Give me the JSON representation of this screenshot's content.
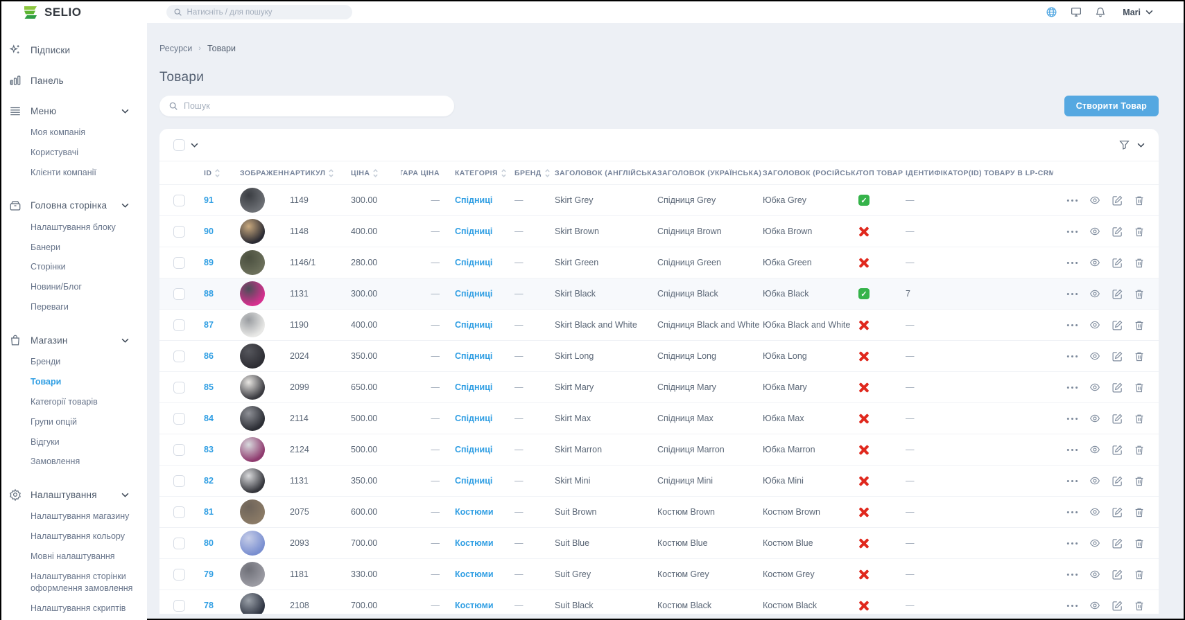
{
  "topbar": {
    "logo_text": "SELIO",
    "search_placeholder": "Натисніть / для пошуку",
    "user_name": "Mari"
  },
  "sidebar": {
    "active_item": "Товари",
    "sections": [
      {
        "label": "Підписки",
        "icon": "sparkles",
        "children": []
      },
      {
        "label": "Панель",
        "icon": "bar-chart",
        "children": []
      },
      {
        "label": "Меню",
        "icon": "menu-lines",
        "expanded": true,
        "children": [
          "Моя компанія",
          "Користувачі",
          "Клієнти компанії"
        ]
      },
      {
        "label": "Головна сторінка",
        "icon": "archive-box",
        "expanded": true,
        "children": [
          "Налаштування блоку",
          "Банери",
          "Сторінки",
          "Новини/Блог",
          "Переваги"
        ]
      },
      {
        "label": "Магазин",
        "icon": "shopping-bag",
        "expanded": true,
        "children": [
          "Бренди",
          "Товари",
          "Категорії товарів",
          "Групи опцій",
          "Відгуки",
          "Замовлення"
        ]
      },
      {
        "label": "Налаштування",
        "icon": "gear",
        "expanded": true,
        "children": [
          "Налаштування магазину",
          "Налаштування кольору",
          "Мовні налаштування",
          "Налаштування сторінки оформлення замовлення",
          "Налаштування скриптів"
        ]
      }
    ]
  },
  "breadcrumb": {
    "items": [
      "Ресурси",
      "Товари"
    ]
  },
  "page": {
    "title": "Товари",
    "search_placeholder": "Пошук",
    "create_button_label": "Створити Товар"
  },
  "colors": {
    "accent_blue": "#2f9ee3",
    "button_blue": "#55a8e1",
    "top_yes_green": "#35b34a",
    "top_no_red": "#e0281d",
    "logo_green": "#5cb531"
  },
  "table": {
    "columns": [
      "ID",
      "ЗОБРАЖЕННЯ",
      "АРТИКУЛ",
      "ЦІНА",
      "СТАРА ЦІНА",
      "КАТЕГОРІЯ",
      "БРЕНД",
      "ЗАГОЛОВОК (АНГЛІЙСЬКА)",
      "ЗАГОЛОВОК (УКРАЇНСЬКА)",
      "ЗАГОЛОВОК (РОСІЙСЬКА)",
      "ТОП ТОВАР",
      "ІДЕНТИФІКАТОР(ID) ТОВАРУ В LP-CRM"
    ],
    "sortable": [
      true,
      false,
      true,
      true,
      false,
      true,
      true,
      false,
      false,
      false,
      false,
      false
    ],
    "empty_value": "—",
    "rows": [
      {
        "id": "91",
        "sku": "1149",
        "price": "300.00",
        "old_price": "—",
        "category": "Спідниці",
        "brand": "—",
        "title_en": "Skirt Grey",
        "title_uk": "Спідниця Grey",
        "title_ru": "Юбка Grey",
        "top": true,
        "lp_crm_id": "—",
        "highlighted": false,
        "thumb_colors": [
          "#6c6f74",
          "#3a3d42"
        ]
      },
      {
        "id": "90",
        "sku": "1148",
        "price": "400.00",
        "old_price": "—",
        "category": "Спідниці",
        "brand": "—",
        "title_en": "Skirt Brown",
        "title_uk": "Спідниця Brown",
        "title_ru": "Юбка Brown",
        "top": false,
        "lp_crm_id": "—",
        "highlighted": false,
        "thumb_colors": [
          "#2b2b33",
          "#c9a97e"
        ]
      },
      {
        "id": "89",
        "sku": "1146/1",
        "price": "280.00",
        "old_price": "—",
        "category": "Спідниці",
        "brand": "—",
        "title_en": "Skirt Green",
        "title_uk": "Спідниця Green",
        "title_ru": "Юбка Green",
        "top": false,
        "lp_crm_id": "—",
        "highlighted": false,
        "thumb_colors": [
          "#6b6f5a",
          "#4a4f3f"
        ]
      },
      {
        "id": "88",
        "sku": "1131",
        "price": "300.00",
        "old_price": "—",
        "category": "Спідниці",
        "brand": "—",
        "title_en": "Skirt Black",
        "title_uk": "Спідниця Black",
        "title_ru": "Юбка Black",
        "top": true,
        "lp_crm_id": "7",
        "highlighted": true,
        "thumb_colors": [
          "#d6308f",
          "#4a4f57"
        ]
      },
      {
        "id": "87",
        "sku": "1190",
        "price": "400.00",
        "old_price": "—",
        "category": "Спідниці",
        "brand": "—",
        "title_en": "Skirt Black and White",
        "title_uk": "Спідниця Black and White",
        "title_ru": "Юбка Black and White",
        "top": false,
        "lp_crm_id": "—",
        "highlighted": false,
        "thumb_colors": [
          "#e8e8e6",
          "#9a9da1"
        ]
      },
      {
        "id": "86",
        "sku": "2024",
        "price": "350.00",
        "old_price": "—",
        "category": "Спідниці",
        "brand": "—",
        "title_en": "Skirt Long",
        "title_uk": "Спідниця Long",
        "title_ru": "Юбка Long",
        "top": false,
        "lp_crm_id": "—",
        "highlighted": false,
        "thumb_colors": [
          "#2e2e34",
          "#55565c"
        ]
      },
      {
        "id": "85",
        "sku": "2099",
        "price": "650.00",
        "old_price": "—",
        "category": "Спідниці",
        "brand": "—",
        "title_en": "Skirt Mary",
        "title_uk": "Спідниця Mary",
        "title_ru": "Юбка Mary",
        "top": false,
        "lp_crm_id": "—",
        "highlighted": false,
        "thumb_colors": [
          "#3a3a40",
          "#e8e6e2"
        ]
      },
      {
        "id": "84",
        "sku": "2114",
        "price": "500.00",
        "old_price": "—",
        "category": "Спідниці",
        "brand": "—",
        "title_en": "Skirt Max",
        "title_uk": "Спідниця Max",
        "title_ru": "Юбка Max",
        "top": false,
        "lp_crm_id": "—",
        "highlighted": false,
        "thumb_colors": [
          "#2c2e35",
          "#8e9096"
        ]
      },
      {
        "id": "83",
        "sku": "2124",
        "price": "500.00",
        "old_price": "—",
        "category": "Спідниці",
        "brand": "—",
        "title_en": "Skirt Marron",
        "title_uk": "Спідниця Marron",
        "title_ru": "Юбка Marron",
        "top": false,
        "lp_crm_id": "—",
        "highlighted": false,
        "thumb_colors": [
          "#8e3a6e",
          "#d8d9dd"
        ]
      },
      {
        "id": "82",
        "sku": "1131",
        "price": "350.00",
        "old_price": "—",
        "category": "Спідниці",
        "brand": "—",
        "title_en": "Skirt Mini",
        "title_uk": "Спідниця Mini",
        "title_ru": "Юбка Mini",
        "top": false,
        "lp_crm_id": "—",
        "highlighted": false,
        "thumb_colors": [
          "#35363c",
          "#d9dadc"
        ]
      },
      {
        "id": "81",
        "sku": "2075",
        "price": "600.00",
        "old_price": "—",
        "category": "Костюми",
        "brand": "—",
        "title_en": "Suit Brown",
        "title_uk": "Костюм Brown",
        "title_ru": "Костюм Brown",
        "top": false,
        "lp_crm_id": "—",
        "highlighted": false,
        "thumb_colors": [
          "#8a7a66",
          "#6e645a"
        ]
      },
      {
        "id": "80",
        "sku": "2093",
        "price": "700.00",
        "old_price": "—",
        "category": "Костюми",
        "brand": "—",
        "title_en": "Suit Blue",
        "title_uk": "Костюм Blue",
        "title_ru": "Костюм Blue",
        "top": false,
        "lp_crm_id": "—",
        "highlighted": false,
        "thumb_colors": [
          "#7a8fd0",
          "#c6cde8"
        ]
      },
      {
        "id": "79",
        "sku": "1181",
        "price": "330.00",
        "old_price": "—",
        "category": "Костюми",
        "brand": "—",
        "title_en": "Suit Grey",
        "title_uk": "Костюм Grey",
        "title_ru": "Костюм Grey",
        "top": false,
        "lp_crm_id": "—",
        "highlighted": false,
        "thumb_colors": [
          "#9a9aa2",
          "#6f7078"
        ]
      },
      {
        "id": "78",
        "sku": "2108",
        "price": "700.00",
        "old_price": "—",
        "category": "Костюми",
        "brand": "—",
        "title_en": "Suit Black",
        "title_uk": "Костюм Black",
        "title_ru": "Костюм Black",
        "top": false,
        "lp_crm_id": "—",
        "highlighted": false,
        "thumb_colors": [
          "#2e3442",
          "#9aa0a8"
        ]
      }
    ]
  }
}
